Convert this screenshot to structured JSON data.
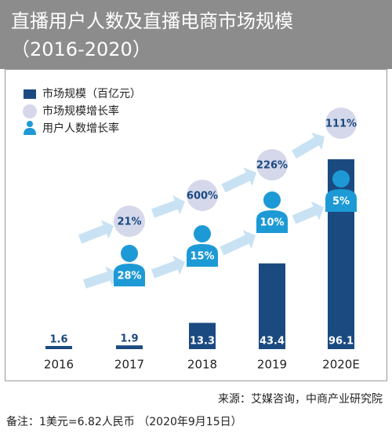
{
  "chart_data": {
    "type": "bar",
    "title": "直播用户人数及直播电商市场规模",
    "subtitle": "（2016-2020）",
    "categories": [
      "2016",
      "2017",
      "2018",
      "2019",
      "2020E"
    ],
    "series": [
      {
        "name": "市场规模（百亿元）",
        "color": "#1b4a80",
        "values": [
          1.6,
          1.9,
          13.3,
          43.4,
          96.1
        ]
      },
      {
        "name": "市场规模增长率",
        "color": "#d5d8ea",
        "values": [
          null,
          21,
          600,
          226,
          111
        ],
        "value_labels": [
          null,
          "21%",
          "600%",
          "226%",
          "111%"
        ]
      },
      {
        "name": "用户人数增长率",
        "color": "#1d9ad6",
        "values": [
          null,
          28,
          15,
          10,
          5
        ],
        "value_labels": [
          null,
          "28%",
          "15%",
          "10%",
          "5%"
        ]
      }
    ],
    "source": "来源：艾媒咨询，中商产业研究院",
    "note": "备注：1美元=6.82人民币 （2020年9月15日）"
  }
}
